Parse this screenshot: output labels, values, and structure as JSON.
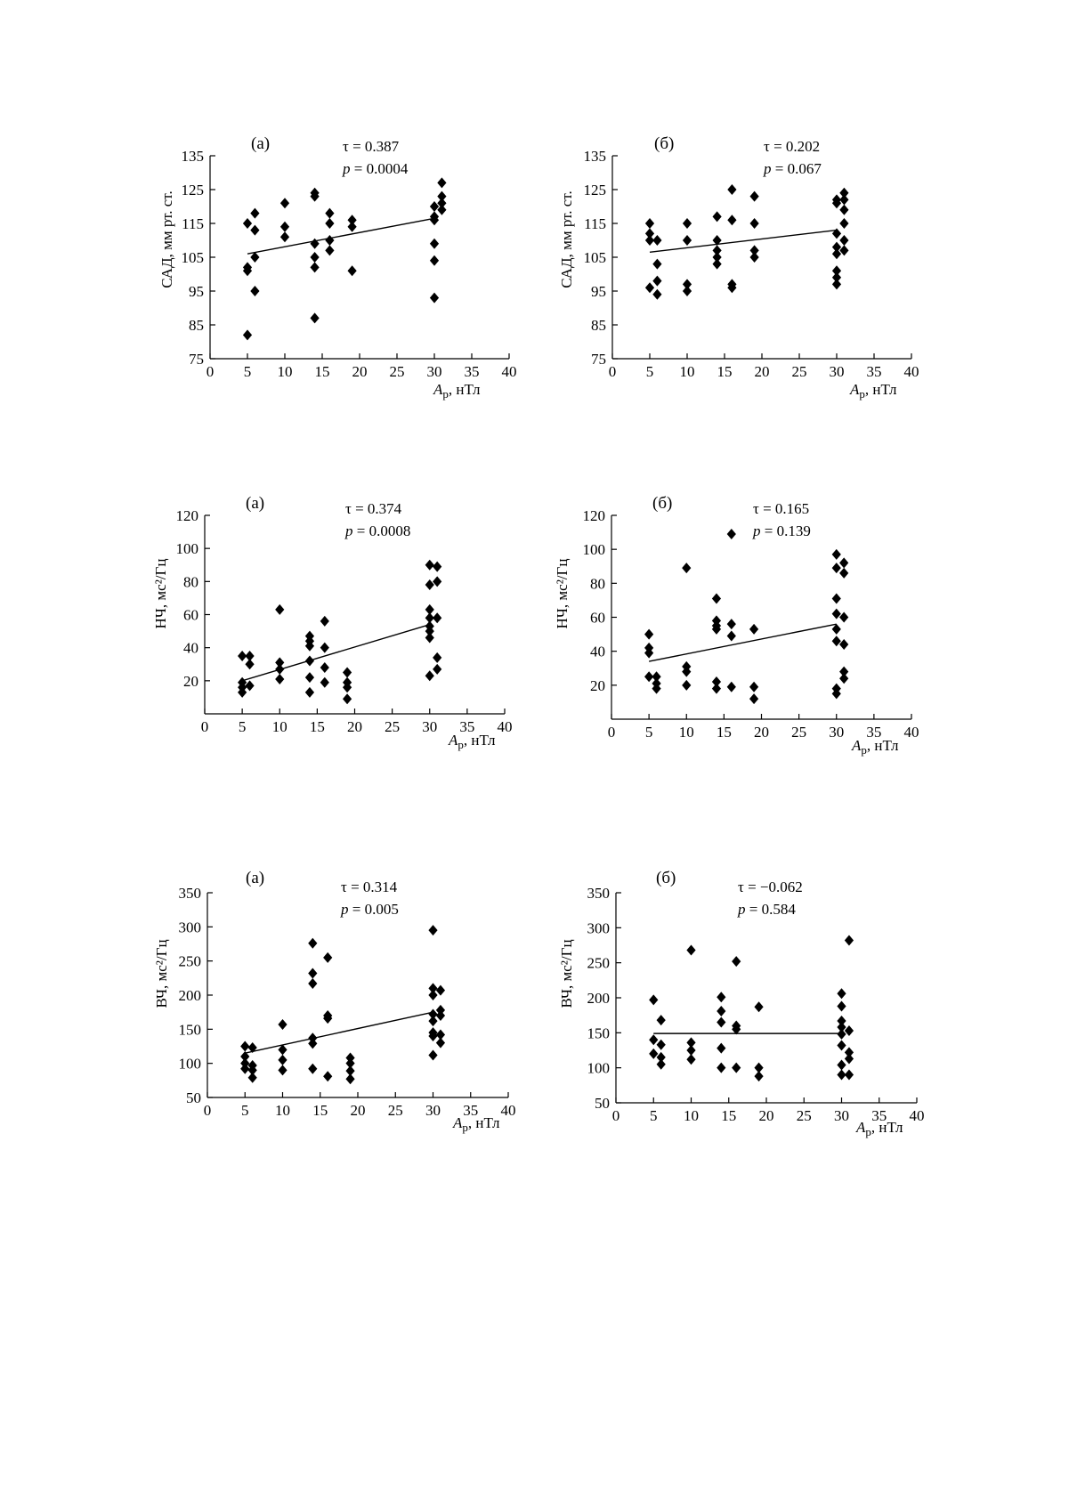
{
  "figure": {
    "charts": [
      {
        "id": "sad-a",
        "panel_label": "(а)",
        "tau_text": "τ = 0.387",
        "p_prefix": "p",
        "p_rest": " = 0.0004",
        "ylabel": "САД, мм рт. ст.",
        "xlabel_main": "A",
        "xlabel_sub": "р",
        "xlabel_rest": ", нТл"
      },
      {
        "id": "sad-b",
        "panel_label": "(б)",
        "tau_text": "τ = 0.202",
        "p_prefix": "p",
        "p_rest": " = 0.067",
        "ylabel": "САД, мм рт. ст.",
        "xlabel_main": "A",
        "xlabel_sub": "р",
        "xlabel_rest": ", нТл"
      },
      {
        "id": "nch-a",
        "panel_label": "(а)",
        "tau_text": "τ = 0.374",
        "p_prefix": "p",
        "p_rest": " = 0.0008",
        "ylabel": "НЧ, мс²/Гц",
        "xlabel_main": "A",
        "xlabel_sub": "р",
        "xlabel_rest": ", нТл"
      },
      {
        "id": "nch-b",
        "panel_label": "(б)",
        "tau_text": "τ = 0.165",
        "p_prefix": "p",
        "p_rest": " = 0.139",
        "ylabel": "НЧ, мс²/Гц",
        "xlabel_main": "A",
        "xlabel_sub": "р",
        "xlabel_rest": ", нТл"
      },
      {
        "id": "vch-a",
        "panel_label": "(а)",
        "tau_text": "τ = 0.314",
        "p_prefix": "p",
        "p_rest": " = 0.005",
        "ylabel": "ВЧ, мс²/Гц",
        "xlabel_main": "A",
        "xlabel_sub": "р",
        "xlabel_rest": ", нТл"
      },
      {
        "id": "vch-b",
        "panel_label": "(б)",
        "tau_text": "τ = −0.062",
        "p_prefix": "p",
        "p_rest": " = 0.584",
        "ylabel": "ВЧ, мс²/Гц",
        "xlabel_main": "A",
        "xlabel_sub": "р",
        "xlabel_rest": ", нТл"
      }
    ]
  },
  "chart_data": [
    {
      "type": "scatter",
      "title": "(а)",
      "annotations": [
        "τ = 0.387",
        "p = 0.0004"
      ],
      "xlabel": "Aр, нТл",
      "ylabel": "САД, мм рт. ст.",
      "xlim": [
        0,
        40
      ],
      "ylim": [
        75,
        135
      ],
      "xticks": [
        0,
        5,
        10,
        15,
        20,
        25,
        30,
        35,
        40
      ],
      "yticks": [
        75,
        85,
        95,
        105,
        115,
        125,
        135
      ],
      "grid": false,
      "points": [
        [
          5,
          115
        ],
        [
          5,
          102
        ],
        [
          5,
          101
        ],
        [
          5,
          82
        ],
        [
          6,
          118
        ],
        [
          6,
          113
        ],
        [
          6,
          105
        ],
        [
          6,
          95
        ],
        [
          10,
          121
        ],
        [
          10,
          114
        ],
        [
          10,
          111
        ],
        [
          14,
          124
        ],
        [
          14,
          123
        ],
        [
          14,
          109
        ],
        [
          14,
          105
        ],
        [
          14,
          102
        ],
        [
          14,
          87
        ],
        [
          16,
          118
        ],
        [
          16,
          115
        ],
        [
          16,
          110
        ],
        [
          16,
          107
        ],
        [
          19,
          116
        ],
        [
          19,
          114
        ],
        [
          19,
          101
        ],
        [
          30,
          120
        ],
        [
          30,
          117
        ],
        [
          30,
          116
        ],
        [
          30,
          109
        ],
        [
          30,
          104
        ],
        [
          30,
          93
        ],
        [
          31,
          127
        ],
        [
          31,
          123
        ],
        [
          31,
          121
        ],
        [
          31,
          119
        ]
      ],
      "trend_line": [
        [
          5,
          106
        ],
        [
          30,
          116.5
        ]
      ]
    },
    {
      "type": "scatter",
      "title": "(б)",
      "annotations": [
        "τ = 0.202",
        "p = 0.067"
      ],
      "xlabel": "Aр, нТл",
      "ylabel": "САД, мм рт. ст.",
      "xlim": [
        0,
        40
      ],
      "ylim": [
        75,
        135
      ],
      "xticks": [
        0,
        5,
        10,
        15,
        20,
        25,
        30,
        35,
        40
      ],
      "yticks": [
        75,
        85,
        95,
        105,
        115,
        125,
        135
      ],
      "grid": false,
      "points": [
        [
          5,
          115
        ],
        [
          5,
          112
        ],
        [
          5,
          110
        ],
        [
          5,
          96
        ],
        [
          6,
          110
        ],
        [
          6,
          103
        ],
        [
          6,
          98
        ],
        [
          6,
          94
        ],
        [
          10,
          115
        ],
        [
          10,
          110
        ],
        [
          10,
          97
        ],
        [
          10,
          95
        ],
        [
          14,
          117
        ],
        [
          14,
          110
        ],
        [
          14,
          107
        ],
        [
          14,
          105
        ],
        [
          14,
          103
        ],
        [
          16,
          125
        ],
        [
          16,
          116
        ],
        [
          16,
          97
        ],
        [
          16,
          96
        ],
        [
          19,
          123
        ],
        [
          19,
          115
        ],
        [
          19,
          107
        ],
        [
          19,
          105
        ],
        [
          30,
          122
        ],
        [
          30,
          121
        ],
        [
          30,
          112
        ],
        [
          30,
          108
        ],
        [
          30,
          106
        ],
        [
          30,
          101
        ],
        [
          30,
          99
        ],
        [
          30,
          97
        ],
        [
          31,
          124
        ],
        [
          31,
          122
        ],
        [
          31,
          119
        ],
        [
          31,
          115
        ],
        [
          31,
          110
        ],
        [
          31,
          107
        ]
      ],
      "trend_line": [
        [
          5,
          106.5
        ],
        [
          30,
          113
        ]
      ]
    },
    {
      "type": "scatter",
      "title": "(а)",
      "annotations": [
        "τ = 0.374",
        "p = 0.0008"
      ],
      "xlabel": "Aр, нТл",
      "ylabel": "НЧ, мс²/Гц",
      "xlim": [
        0,
        40
      ],
      "ylim": [
        0,
        120
      ],
      "xticks": [
        0,
        5,
        10,
        15,
        20,
        25,
        30,
        35,
        40
      ],
      "yticks": [
        20,
        40,
        60,
        80,
        100,
        120
      ],
      "grid": false,
      "points": [
        [
          5,
          35
        ],
        [
          5,
          19
        ],
        [
          5,
          16
        ],
        [
          5,
          13
        ],
        [
          6,
          35
        ],
        [
          6,
          30
        ],
        [
          6,
          17
        ],
        [
          10,
          63
        ],
        [
          10,
          31
        ],
        [
          10,
          27
        ],
        [
          10,
          21
        ],
        [
          14,
          47
        ],
        [
          14,
          44
        ],
        [
          14,
          41
        ],
        [
          14,
          32
        ],
        [
          14,
          22
        ],
        [
          14,
          13
        ],
        [
          16,
          56
        ],
        [
          16,
          40
        ],
        [
          16,
          28
        ],
        [
          16,
          19
        ],
        [
          19,
          25
        ],
        [
          19,
          19
        ],
        [
          19,
          16
        ],
        [
          19,
          9
        ],
        [
          30,
          90
        ],
        [
          30,
          78
        ],
        [
          30,
          63
        ],
        [
          30,
          58
        ],
        [
          30,
          53
        ],
        [
          30,
          50
        ],
        [
          30,
          46
        ],
        [
          30,
          23
        ],
        [
          31,
          89
        ],
        [
          31,
          80
        ],
        [
          31,
          58
        ],
        [
          31,
          34
        ],
        [
          31,
          27
        ]
      ],
      "trend_line": [
        [
          5,
          20
        ],
        [
          30,
          54
        ]
      ]
    },
    {
      "type": "scatter",
      "title": "(б)",
      "annotations": [
        "τ = 0.165",
        "p = 0.139"
      ],
      "xlabel": "Aр, нТл",
      "ylabel": "НЧ, мс²/Гц",
      "xlim": [
        0,
        40
      ],
      "ylim": [
        0,
        120
      ],
      "xticks": [
        0,
        5,
        10,
        15,
        20,
        25,
        30,
        35,
        40
      ],
      "yticks": [
        20,
        40,
        60,
        80,
        100,
        120
      ],
      "grid": false,
      "points": [
        [
          5,
          50
        ],
        [
          5,
          42
        ],
        [
          5,
          39
        ],
        [
          5,
          25
        ],
        [
          6,
          25
        ],
        [
          6,
          21
        ],
        [
          6,
          18
        ],
        [
          10,
          89
        ],
        [
          10,
          31
        ],
        [
          10,
          28
        ],
        [
          10,
          20
        ],
        [
          14,
          71
        ],
        [
          14,
          58
        ],
        [
          14,
          55
        ],
        [
          14,
          53
        ],
        [
          14,
          22
        ],
        [
          14,
          18
        ],
        [
          16,
          109
        ],
        [
          16,
          56
        ],
        [
          16,
          49
        ],
        [
          16,
          19
        ],
        [
          19,
          53
        ],
        [
          19,
          19
        ],
        [
          19,
          12
        ],
        [
          30,
          97
        ],
        [
          30,
          89
        ],
        [
          30,
          71
        ],
        [
          30,
          62
        ],
        [
          30,
          53
        ],
        [
          30,
          46
        ],
        [
          30,
          18
        ],
        [
          30,
          15
        ],
        [
          31,
          92
        ],
        [
          31,
          86
        ],
        [
          31,
          60
        ],
        [
          31,
          44
        ],
        [
          31,
          28
        ],
        [
          31,
          24
        ]
      ],
      "trend_line": [
        [
          5,
          34
        ],
        [
          30,
          56
        ]
      ]
    },
    {
      "type": "scatter",
      "title": "(а)",
      "annotations": [
        "τ = 0.314",
        "p = 0.005"
      ],
      "xlabel": "Aр, нТл",
      "ylabel": "ВЧ, мс²/Гц",
      "xlim": [
        0,
        40
      ],
      "ylim": [
        50,
        350
      ],
      "xticks": [
        0,
        5,
        10,
        15,
        20,
        25,
        30,
        35,
        40
      ],
      "yticks": [
        50,
        100,
        150,
        200,
        250,
        300,
        350
      ],
      "grid": false,
      "points": [
        [
          5,
          125
        ],
        [
          5,
          110
        ],
        [
          5,
          100
        ],
        [
          5,
          92
        ],
        [
          6,
          123
        ],
        [
          6,
          97
        ],
        [
          6,
          90
        ],
        [
          6,
          79
        ],
        [
          10,
          157
        ],
        [
          10,
          120
        ],
        [
          10,
          105
        ],
        [
          10,
          90
        ],
        [
          14,
          276
        ],
        [
          14,
          232
        ],
        [
          14,
          217
        ],
        [
          14,
          137
        ],
        [
          14,
          129
        ],
        [
          14,
          92
        ],
        [
          16,
          255
        ],
        [
          16,
          170
        ],
        [
          16,
          166
        ],
        [
          16,
          81
        ],
        [
          19,
          108
        ],
        [
          19,
          100
        ],
        [
          19,
          89
        ],
        [
          19,
          77
        ],
        [
          30,
          295
        ],
        [
          30,
          210
        ],
        [
          30,
          200
        ],
        [
          30,
          172
        ],
        [
          30,
          162
        ],
        [
          30,
          145
        ],
        [
          30,
          140
        ],
        [
          30,
          112
        ],
        [
          31,
          207
        ],
        [
          31,
          178
        ],
        [
          31,
          170
        ],
        [
          31,
          142
        ],
        [
          31,
          130
        ]
      ],
      "trend_line": [
        [
          5,
          115
        ],
        [
          30,
          175
        ]
      ]
    },
    {
      "type": "scatter",
      "title": "(б)",
      "annotations": [
        "τ = −0.062",
        "p = 0.584"
      ],
      "xlabel": "Aр, нТл",
      "ylabel": "ВЧ, мс²/Гц",
      "xlim": [
        0,
        40
      ],
      "ylim": [
        50,
        350
      ],
      "xticks": [
        0,
        5,
        10,
        15,
        20,
        25,
        30,
        35,
        40
      ],
      "yticks": [
        50,
        100,
        150,
        200,
        250,
        300,
        350
      ],
      "grid": false,
      "points": [
        [
          5,
          197
        ],
        [
          5,
          140
        ],
        [
          5,
          120
        ],
        [
          6,
          168
        ],
        [
          6,
          133
        ],
        [
          6,
          115
        ],
        [
          6,
          105
        ],
        [
          10,
          268
        ],
        [
          10,
          136
        ],
        [
          10,
          125
        ],
        [
          10,
          112
        ],
        [
          14,
          201
        ],
        [
          14,
          181
        ],
        [
          14,
          165
        ],
        [
          14,
          128
        ],
        [
          14,
          100
        ],
        [
          16,
          252
        ],
        [
          16,
          160
        ],
        [
          16,
          155
        ],
        [
          16,
          100
        ],
        [
          19,
          187
        ],
        [
          19,
          100
        ],
        [
          19,
          88
        ],
        [
          30,
          206
        ],
        [
          30,
          188
        ],
        [
          30,
          167
        ],
        [
          30,
          158
        ],
        [
          30,
          148
        ],
        [
          30,
          132
        ],
        [
          30,
          104
        ],
        [
          30,
          90
        ],
        [
          31,
          282
        ],
        [
          31,
          153
        ],
        [
          31,
          122
        ],
        [
          31,
          113
        ],
        [
          31,
          90
        ]
      ],
      "trend_line": [
        [
          5,
          149
        ],
        [
          30,
          149
        ]
      ]
    }
  ]
}
